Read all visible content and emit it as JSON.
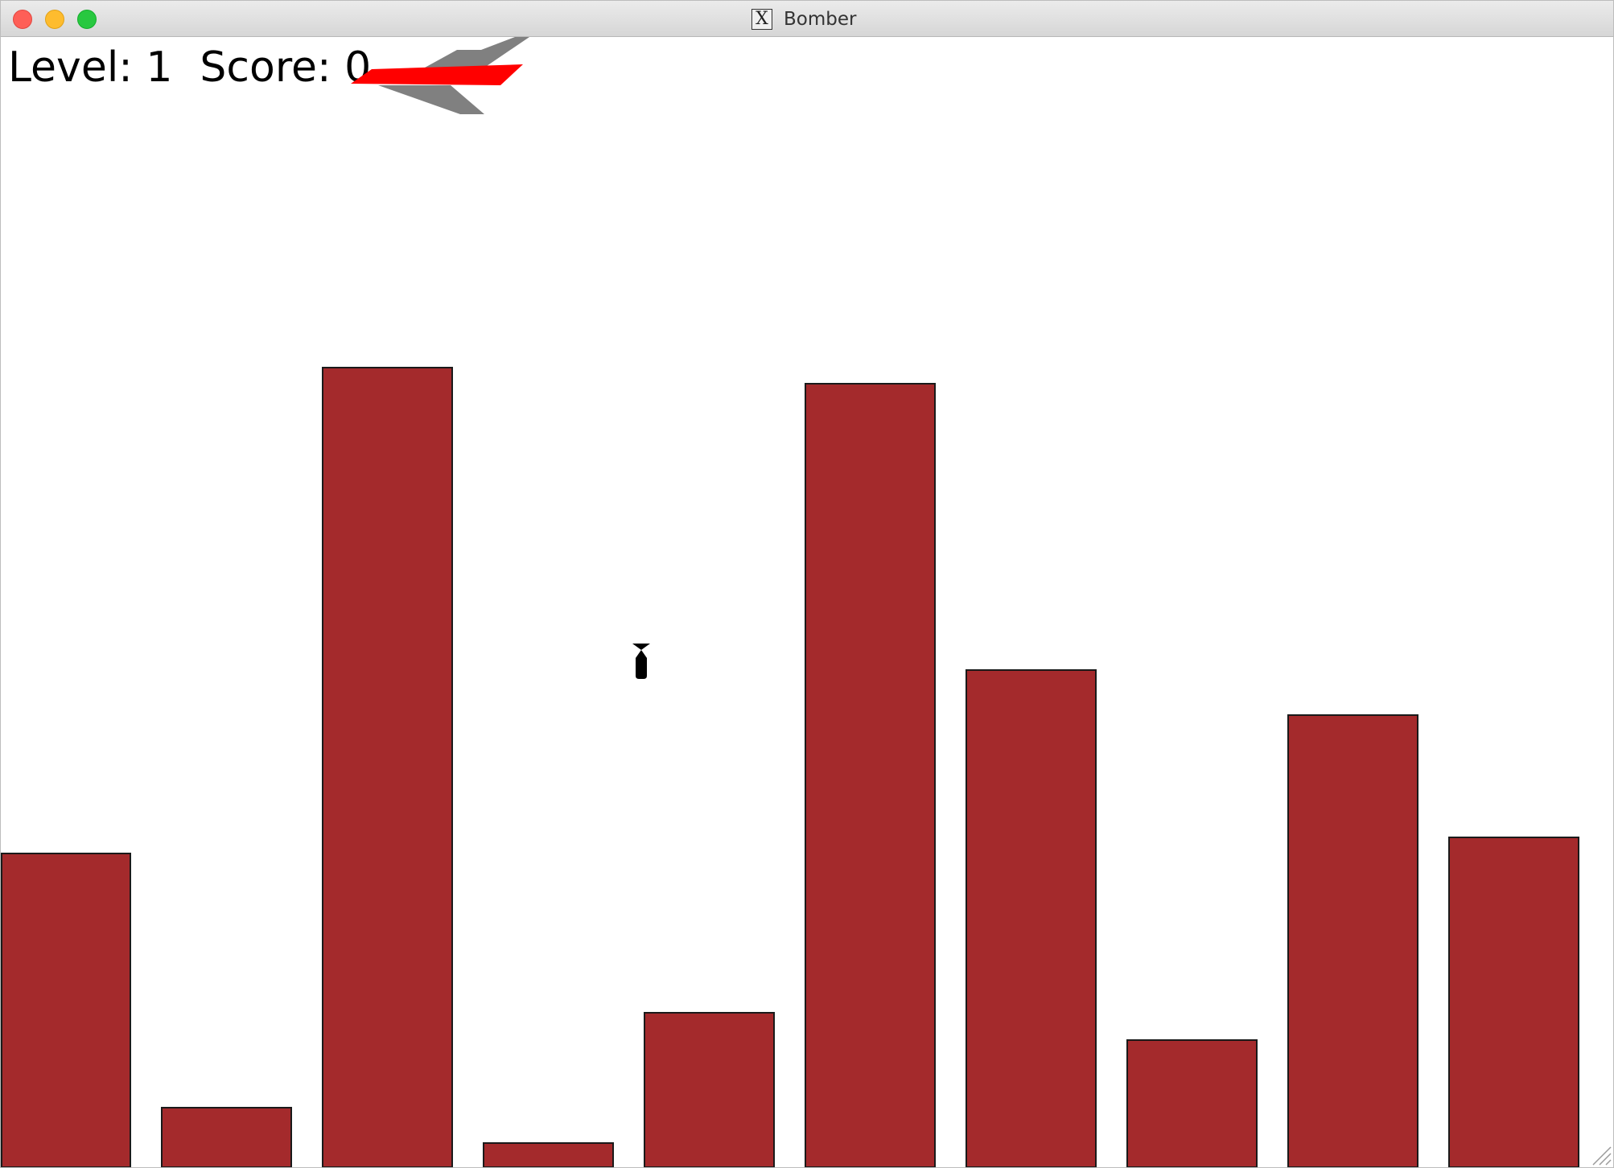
{
  "window": {
    "title": "Bomber",
    "app_icon": "x11-icon",
    "app_icon_glyph": "X",
    "controls": [
      "close-button",
      "minimize-button",
      "zoom-button"
    ],
    "traffic_colors": {
      "close": "#fe5f57",
      "minimize": "#febc2e",
      "zoom": "#28c840"
    }
  },
  "hud": {
    "level_label": "Level:",
    "level_value": "1",
    "score_label": "Score:",
    "score_value": "0"
  },
  "game": {
    "building_color": "#a42a2c",
    "plane_colors": {
      "body": "#ff0000",
      "wings": "#808080"
    },
    "bomb_color": "#000000",
    "buildings": [
      {
        "index": 1,
        "height_level": 0.42
      },
      {
        "index": 2,
        "height_level": 0.07
      },
      {
        "index": 3,
        "height_level": 1.0
      },
      {
        "index": 4,
        "height_level": 0.03
      },
      {
        "index": 5,
        "height_level": 0.19
      },
      {
        "index": 6,
        "height_level": 0.98
      },
      {
        "index": 7,
        "height_level": 0.61
      },
      {
        "index": 8,
        "height_level": 0.16
      },
      {
        "index": 9,
        "height_level": 0.55
      },
      {
        "index": 10,
        "height_level": 0.4
      }
    ]
  }
}
